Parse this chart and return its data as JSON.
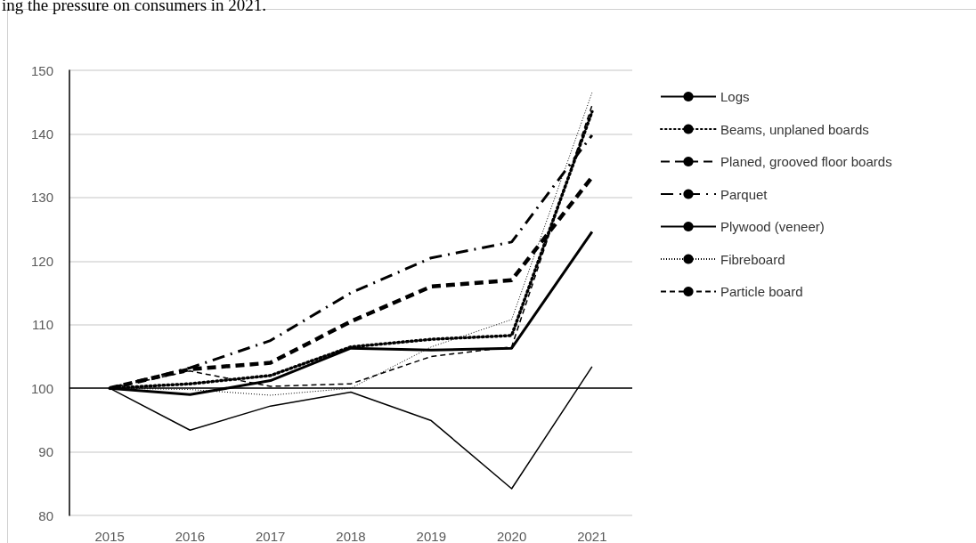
{
  "chart_data": {
    "type": "line",
    "annotations": [
      "ing the pressure on consumers in 2021."
    ],
    "categories": [
      "2015",
      "2016",
      "2017",
      "2018",
      "2019",
      "2020",
      "2021"
    ],
    "series": [
      {
        "name": "Logs",
        "color": "#000000",
        "line_style": "solid",
        "values": [
          100,
          99,
          101.2,
          106.3,
          106,
          106.3,
          124.6
        ]
      },
      {
        "name": "Beams, unplaned boards",
        "color": "#000000",
        "line_style": "dotted",
        "values": [
          100,
          100.7,
          102,
          106.5,
          107.7,
          108.3,
          143.5
        ]
      },
      {
        "name": "Planed, grooved floor boards",
        "color": "#000000",
        "line_style": "dashed",
        "values": [
          100,
          103,
          104,
          110.5,
          116,
          117,
          133.2
        ]
      },
      {
        "name": "Parquet",
        "color": "#000000",
        "line_style": "dashdot",
        "values": [
          100,
          103.2,
          107.5,
          115,
          120.5,
          123,
          139.8
        ]
      },
      {
        "name": "Plywood (veneer)",
        "color": "#000000",
        "line_style": "solid",
        "values": [
          100,
          93.4,
          97.2,
          99.4,
          94.9,
          84.2,
          103.4
        ]
      },
      {
        "name": "Fibreboard",
        "color": "#000000",
        "line_style": "dotted",
        "values": [
          100,
          99.8,
          98.9,
          100,
          106.5,
          110.8,
          146.5
        ]
      },
      {
        "name": "Particle board",
        "color": "#000000",
        "line_style": "dashed",
        "values": [
          100,
          102.7,
          100.3,
          100.7,
          105,
          106.5,
          144.5
        ]
      }
    ],
    "ylim": [
      80,
      150
    ],
    "yticks": [
      80,
      90,
      100,
      110,
      120,
      130,
      140,
      150
    ],
    "ref_lines": [
      {
        "axis": "y",
        "value": 100,
        "color": "#000000"
      }
    ],
    "grid": "y",
    "legend": "right",
    "marker": "none"
  }
}
